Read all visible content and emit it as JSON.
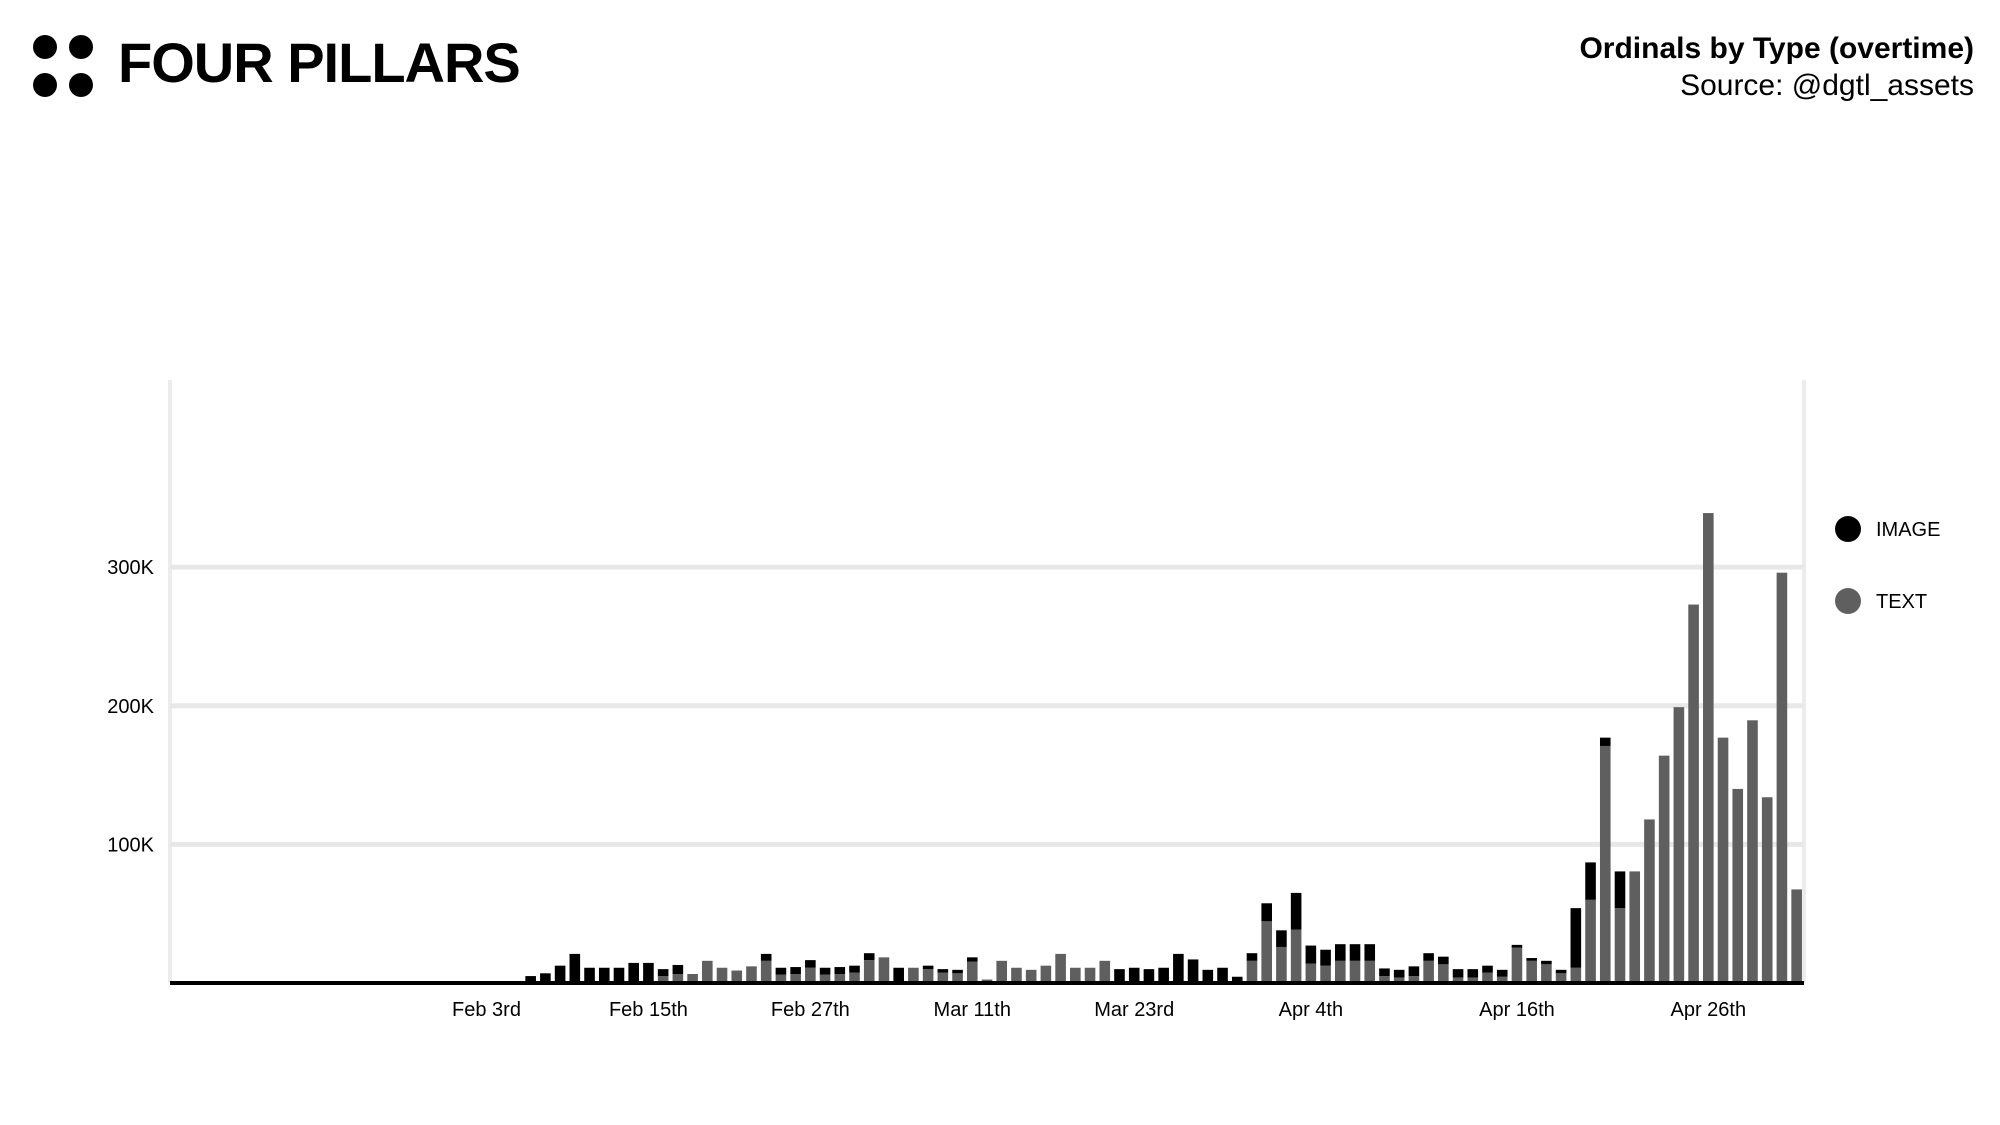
{
  "brand": {
    "name": "FOUR PILLARS"
  },
  "header": {
    "title": "Ordinals by Type (overtime)",
    "source": "Source: @dgtl_assets"
  },
  "chart_data": {
    "type": "bar",
    "stacked": true,
    "title": "Ordinals by Type (overtime)",
    "xlabel": "",
    "ylabel": "",
    "ylim": [
      0,
      435000
    ],
    "y_ticks": [
      {
        "value": 100000,
        "label": "100K"
      },
      {
        "value": 200000,
        "label": "200K"
      },
      {
        "value": 300000,
        "label": "300K"
      }
    ],
    "x_ticks": [
      {
        "index": 21,
        "label": "Feb 3rd"
      },
      {
        "index": 32,
        "label": "Feb 15th"
      },
      {
        "index": 43,
        "label": "Feb 27th"
      },
      {
        "index": 54,
        "label": "Mar 11th"
      },
      {
        "index": 65,
        "label": "Mar 23rd"
      },
      {
        "index": 77,
        "label": "Apr 4th"
      },
      {
        "index": 91,
        "label": "Apr 16th"
      },
      {
        "index": 104,
        "label": "Apr 26th"
      }
    ],
    "grid": true,
    "legend_position": "right",
    "series": [
      {
        "name": "IMAGE",
        "color": "#000000",
        "values": [
          0,
          0,
          0,
          0,
          0,
          0,
          0,
          0,
          0,
          0,
          0,
          0,
          0,
          0,
          0,
          0,
          0,
          0,
          0,
          0,
          0,
          0,
          0,
          0,
          5000,
          7000,
          12500,
          21000,
          11000,
          11000,
          11000,
          14500,
          14500,
          5000,
          6500,
          0,
          0,
          0,
          0,
          0,
          5000,
          5000,
          5000,
          5500,
          5000,
          5000,
          5000,
          5000,
          0,
          11000,
          0,
          2500,
          2500,
          2500,
          3000,
          0,
          0,
          0,
          0,
          0,
          0,
          0,
          0,
          0,
          10000,
          11000,
          10000,
          11000,
          21000,
          17000,
          9500,
          11000,
          4500,
          5500,
          13000,
          12000,
          26500,
          13000,
          11500,
          12000,
          12000,
          12000,
          5500,
          5500,
          7000,
          5500,
          5500,
          6000,
          6000,
          5000,
          5000,
          2000,
          2000,
          2500,
          2500,
          43000,
          27000,
          6000,
          26500,
          0,
          0,
          0,
          0,
          0,
          0,
          0,
          0,
          0,
          0,
          0,
          0
        ]
      },
      {
        "name": "TEXT",
        "color": "#5f5f5f",
        "values": [
          0,
          0,
          0,
          0,
          0,
          0,
          0,
          0,
          0,
          0,
          0,
          0,
          0,
          0,
          0,
          0,
          0,
          0,
          0,
          0,
          0,
          0,
          0,
          0,
          0,
          0,
          0,
          0,
          0,
          0,
          0,
          0,
          0,
          5000,
          6500,
          6500,
          16000,
          11000,
          9000,
          12000,
          16000,
          6000,
          6500,
          11000,
          6000,
          6500,
          7500,
          16500,
          18500,
          0,
          11000,
          10000,
          7500,
          7000,
          15500,
          2500,
          16000,
          11000,
          9500,
          12500,
          21000,
          11000,
          11000,
          16000,
          0,
          0,
          0,
          0,
          0,
          0,
          0,
          0,
          0,
          16000,
          44500,
          26000,
          38500,
          14000,
          12500,
          16000,
          16000,
          16000,
          5000,
          4000,
          5000,
          16000,
          13500,
          4000,
          4000,
          7500,
          4500,
          25500,
          16000,
          13500,
          7000,
          11000,
          60000,
          171000,
          54000,
          80500,
          118000,
          164000,
          199000,
          273000,
          339000,
          177000,
          140000,
          189500,
          134000,
          296000,
          67500
        ]
      }
    ]
  }
}
